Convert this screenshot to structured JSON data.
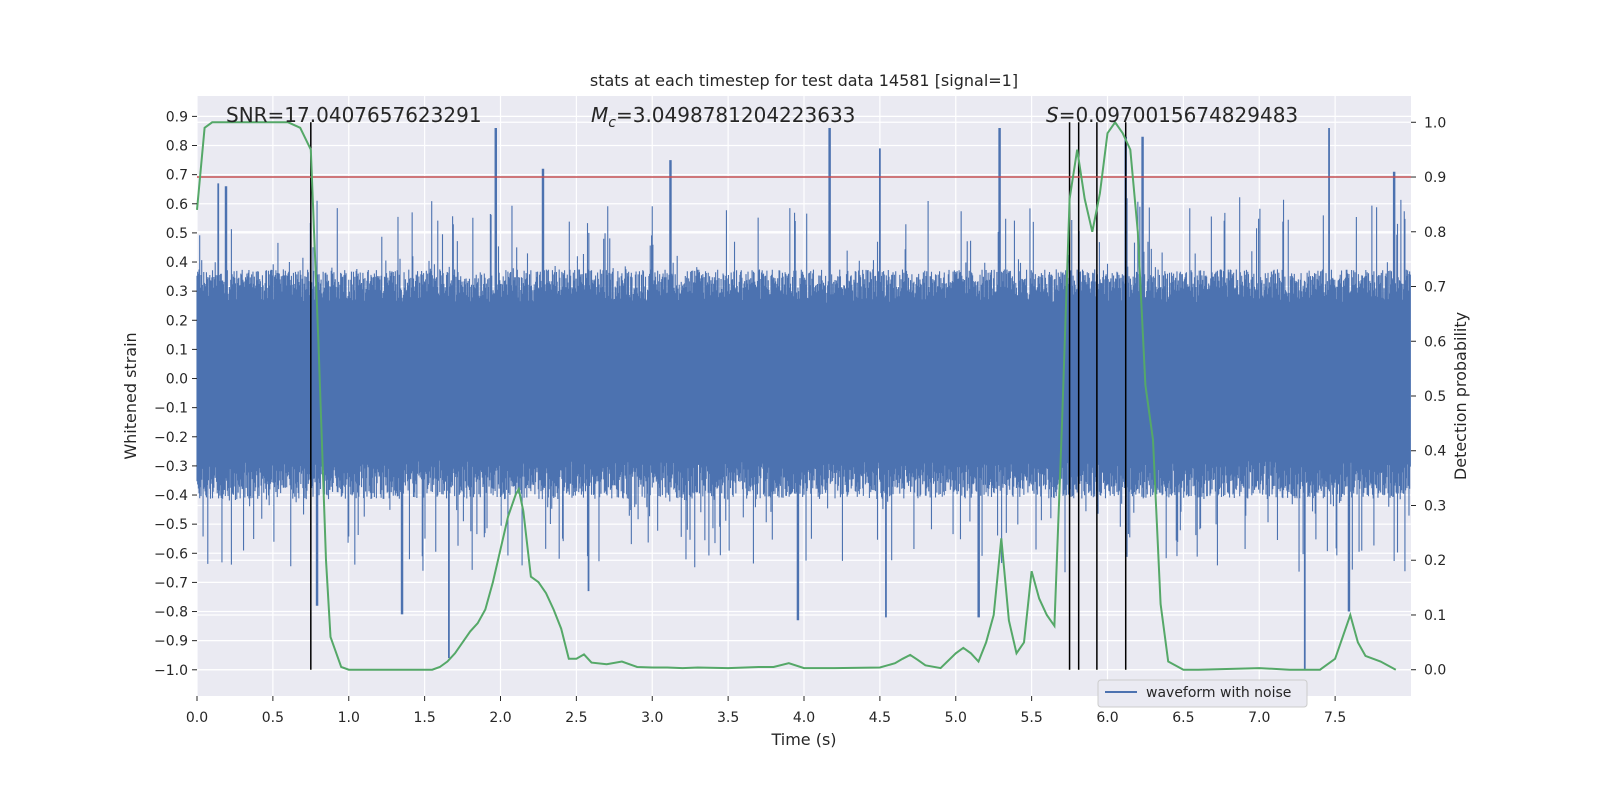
{
  "chart_data": {
    "type": "line",
    "title": "stats at each timestep for test data 14581 [signal=1]",
    "xlabel": "Time (s)",
    "ylabel_left": "Whitened strain",
    "ylabel_right": "Detection probability",
    "xlim": [
      0.0,
      8.0
    ],
    "ylim_left": [
      -1.09,
      0.97
    ],
    "ylim_right": [
      -0.048,
      1.048
    ],
    "x_ticks": [
      "0.0",
      "0.5",
      "1.0",
      "1.5",
      "2.0",
      "2.5",
      "3.0",
      "3.5",
      "4.0",
      "4.5",
      "5.0",
      "5.5",
      "6.0",
      "6.5",
      "7.0",
      "7.5"
    ],
    "y_ticks_left": [
      "0.9",
      "0.8",
      "0.7",
      "0.6",
      "0.5",
      "0.4",
      "0.3",
      "0.2",
      "0.1",
      "0.0",
      "−0.1",
      "−0.2",
      "−0.3",
      "−0.4",
      "−0.5",
      "−0.6",
      "−0.7",
      "−0.8",
      "−0.9",
      "−1.0"
    ],
    "y_ticks_right": [
      "1.0",
      "0.9",
      "0.8",
      "0.7",
      "0.6",
      "0.5",
      "0.4",
      "0.3",
      "0.2",
      "0.1",
      "0.0"
    ],
    "grid": true,
    "legend": {
      "position": "lower-right",
      "entries": [
        "waveform with noise"
      ]
    },
    "annotations": {
      "snr": "SNR=17.0407657623291",
      "mc_symbol": "M",
      "mc_sub": "c",
      "mc_value": "=3.0498781204223633",
      "s_symbol": "S",
      "s_value": "=0.0970015674829483"
    },
    "threshold": {
      "value": 0.9,
      "axis": "right",
      "color": "#c44e52"
    },
    "vertical_lines": [
      0.75,
      5.75,
      5.81,
      5.93,
      6.12
    ],
    "series": [
      {
        "name": "waveform with noise",
        "color": "#4c72b0",
        "axis": "left",
        "envelope": {
          "upper_typical": 0.38,
          "lower_typical": -0.42,
          "peaks": [
            {
              "x": 0.14,
              "y": 0.67
            },
            {
              "x": 0.19,
              "y": 0.66
            },
            {
              "x": 1.97,
              "y": 0.86
            },
            {
              "x": 4.17,
              "y": 0.86
            },
            {
              "x": 4.5,
              "y": 0.79
            },
            {
              "x": 5.29,
              "y": 0.86
            },
            {
              "x": 6.12,
              "y": 0.83
            },
            {
              "x": 6.23,
              "y": 0.83
            },
            {
              "x": 7.46,
              "y": 0.86
            },
            {
              "x": 7.89,
              "y": 0.71
            },
            {
              "x": 3.12,
              "y": 0.75
            },
            {
              "x": 2.28,
              "y": 0.72
            }
          ],
          "troughs": [
            {
              "x": 1.66,
              "y": -0.96
            },
            {
              "x": 0.79,
              "y": -0.78
            },
            {
              "x": 3.96,
              "y": -0.83
            },
            {
              "x": 4.54,
              "y": -0.82
            },
            {
              "x": 5.15,
              "y": -0.82
            },
            {
              "x": 7.3,
              "y": -1.0
            },
            {
              "x": 7.59,
              "y": -0.8
            },
            {
              "x": 1.35,
              "y": -0.81
            },
            {
              "x": 2.58,
              "y": -0.73
            }
          ]
        }
      },
      {
        "name": "",
        "color": "#55a868",
        "axis": "right",
        "x": [
          0.0,
          0.05,
          0.1,
          0.15,
          0.2,
          0.3,
          0.4,
          0.5,
          0.6,
          0.68,
          0.75,
          0.8,
          0.85,
          0.88,
          0.95,
          1.0,
          1.2,
          1.4,
          1.55,
          1.6,
          1.65,
          1.7,
          1.8,
          1.85,
          1.9,
          1.95,
          2.0,
          2.05,
          2.1,
          2.12,
          2.15,
          2.2,
          2.25,
          2.3,
          2.35,
          2.4,
          2.45,
          2.5,
          2.55,
          2.6,
          2.7,
          2.8,
          2.9,
          3.0,
          3.1,
          3.2,
          3.3,
          3.5,
          3.7,
          3.8,
          3.9,
          4.0,
          4.2,
          4.5,
          4.6,
          4.65,
          4.7,
          4.75,
          4.8,
          4.9,
          5.0,
          5.05,
          5.1,
          5.15,
          5.2,
          5.25,
          5.3,
          5.35,
          5.4,
          5.45,
          5.5,
          5.55,
          5.6,
          5.65,
          5.7,
          5.75,
          5.8,
          5.85,
          5.9,
          5.95,
          6.0,
          6.05,
          6.1,
          6.15,
          6.2,
          6.25,
          6.3,
          6.35,
          6.4,
          6.5,
          6.6,
          7.0,
          7.2,
          7.4,
          7.5,
          7.55,
          7.6,
          7.65,
          7.7,
          7.8,
          7.9
        ],
        "y": [
          0.84,
          0.99,
          1.0,
          1.0,
          1.0,
          1.0,
          1.0,
          1.0,
          1.0,
          0.99,
          0.95,
          0.6,
          0.2,
          0.06,
          0.005,
          0.0,
          0.0,
          0.0,
          0.0,
          0.005,
          0.015,
          0.03,
          0.07,
          0.085,
          0.11,
          0.16,
          0.22,
          0.28,
          0.32,
          0.33,
          0.29,
          0.17,
          0.16,
          0.14,
          0.11,
          0.075,
          0.02,
          0.02,
          0.028,
          0.013,
          0.01,
          0.015,
          0.005,
          0.004,
          0.004,
          0.003,
          0.004,
          0.003,
          0.005,
          0.005,
          0.012,
          0.003,
          0.003,
          0.004,
          0.012,
          0.02,
          0.027,
          0.018,
          0.008,
          0.003,
          0.03,
          0.04,
          0.03,
          0.015,
          0.05,
          0.1,
          0.24,
          0.09,
          0.03,
          0.05,
          0.18,
          0.13,
          0.1,
          0.08,
          0.45,
          0.86,
          0.95,
          0.86,
          0.8,
          0.87,
          0.98,
          1.0,
          0.98,
          0.95,
          0.8,
          0.52,
          0.42,
          0.12,
          0.015,
          0.0,
          0.0,
          0.003,
          0.0,
          0.0,
          0.02,
          0.06,
          0.1,
          0.05,
          0.025,
          0.015,
          0.0
        ]
      }
    ]
  }
}
